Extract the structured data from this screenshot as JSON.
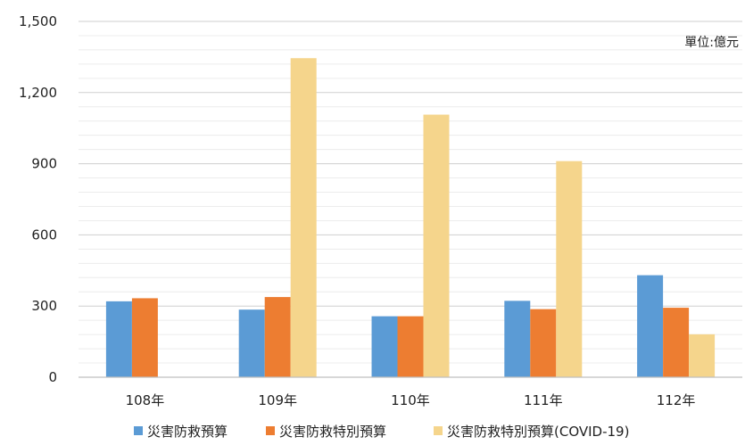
{
  "chart_data": {
    "type": "bar",
    "unit_label": "單位:億元",
    "categories": [
      "108年",
      "109年",
      "110年",
      "111年",
      "112年"
    ],
    "series": [
      {
        "name": "災害防救預算",
        "color": "#5B9BD5",
        "values": [
          320,
          285,
          257,
          322,
          430
        ]
      },
      {
        "name": "災害防救特別預算",
        "color": "#ED7D31",
        "values": [
          333,
          338,
          257,
          287,
          293
        ]
      },
      {
        "name": "災害防救特別預算(COVID-19)",
        "color": "#F5D58C",
        "values": [
          null,
          1345,
          1107,
          911,
          181
        ]
      }
    ],
    "yticks": [
      "0",
      "300",
      "600",
      "900",
      "1,200",
      "1,500"
    ],
    "ylim": [
      0,
      1500
    ],
    "grid": true,
    "legend_position": "bottom"
  }
}
